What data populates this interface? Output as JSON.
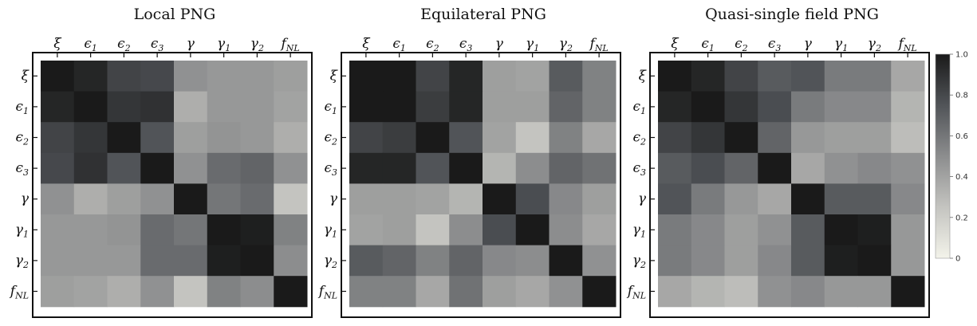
{
  "chart_data": [
    {
      "type": "heatmap",
      "title": "Local PNG",
      "labels": [
        "ξ",
        "ϵ1",
        "ϵ2",
        "ϵ3",
        "γ",
        "γ1",
        "γ2",
        "fNL"
      ],
      "values": [
        [
          1.0,
          0.95,
          0.82,
          0.8,
          0.48,
          0.45,
          0.45,
          0.42
        ],
        [
          0.95,
          1.0,
          0.88,
          0.9,
          0.35,
          0.45,
          0.45,
          0.4
        ],
        [
          0.82,
          0.88,
          1.0,
          0.75,
          0.42,
          0.47,
          0.45,
          0.35
        ],
        [
          0.8,
          0.9,
          0.75,
          1.0,
          0.48,
          0.65,
          0.68,
          0.48
        ],
        [
          0.48,
          0.35,
          0.42,
          0.48,
          1.0,
          0.6,
          0.65,
          0.25
        ],
        [
          0.45,
          0.45,
          0.47,
          0.65,
          0.6,
          1.0,
          0.98,
          0.55
        ],
        [
          0.45,
          0.45,
          0.45,
          0.65,
          0.65,
          0.98,
          1.0,
          0.5
        ],
        [
          0.42,
          0.4,
          0.35,
          0.48,
          0.25,
          0.55,
          0.5,
          1.0
        ]
      ]
    },
    {
      "type": "heatmap",
      "title": "Equilateral PNG",
      "labels": [
        "ξ",
        "ϵ1",
        "ϵ2",
        "ϵ3",
        "γ",
        "γ1",
        "γ2",
        "fNL"
      ],
      "values": [
        [
          1.0,
          1.0,
          0.82,
          0.95,
          0.42,
          0.4,
          0.72,
          0.55
        ],
        [
          1.0,
          1.0,
          0.85,
          0.95,
          0.42,
          0.42,
          0.68,
          0.55
        ],
        [
          0.82,
          0.85,
          1.0,
          0.75,
          0.4,
          0.25,
          0.55,
          0.38
        ],
        [
          0.95,
          0.95,
          0.75,
          1.0,
          0.32,
          0.5,
          0.68,
          0.62
        ],
        [
          0.42,
          0.42,
          0.4,
          0.32,
          1.0,
          0.78,
          0.52,
          0.42
        ],
        [
          0.4,
          0.42,
          0.25,
          0.5,
          0.78,
          1.0,
          0.5,
          0.38
        ],
        [
          0.72,
          0.68,
          0.55,
          0.68,
          0.52,
          0.5,
          1.0,
          0.48
        ],
        [
          0.55,
          0.55,
          0.38,
          0.62,
          0.42,
          0.38,
          0.48,
          1.0
        ]
      ]
    },
    {
      "type": "heatmap",
      "title": "Quasi-single field PNG",
      "labels": [
        "ξ",
        "ϵ1",
        "ϵ2",
        "ϵ3",
        "γ",
        "γ1",
        "γ2",
        "fNL"
      ],
      "values": [
        [
          1.0,
          0.95,
          0.82,
          0.72,
          0.75,
          0.58,
          0.58,
          0.38
        ],
        [
          0.95,
          1.0,
          0.88,
          0.78,
          0.58,
          0.52,
          0.52,
          0.32
        ],
        [
          0.82,
          0.88,
          1.0,
          0.68,
          0.45,
          0.42,
          0.42,
          0.28
        ],
        [
          0.72,
          0.78,
          0.68,
          1.0,
          0.38,
          0.48,
          0.52,
          0.48
        ],
        [
          0.75,
          0.58,
          0.45,
          0.38,
          1.0,
          0.72,
          0.72,
          0.52
        ],
        [
          0.58,
          0.52,
          0.42,
          0.48,
          0.72,
          1.0,
          0.98,
          0.45
        ],
        [
          0.58,
          0.52,
          0.42,
          0.52,
          0.72,
          0.98,
          1.0,
          0.45
        ],
        [
          0.38,
          0.32,
          0.28,
          0.48,
          0.52,
          0.45,
          0.45,
          1.0
        ]
      ]
    }
  ],
  "colorbar": {
    "range": [
      0,
      1
    ],
    "ticks": [
      "1.0",
      "0.8",
      "0.6",
      "0.4",
      "0.2",
      "0"
    ],
    "color_low": "#f3f3ea",
    "color_high": "#1a1a1a"
  }
}
